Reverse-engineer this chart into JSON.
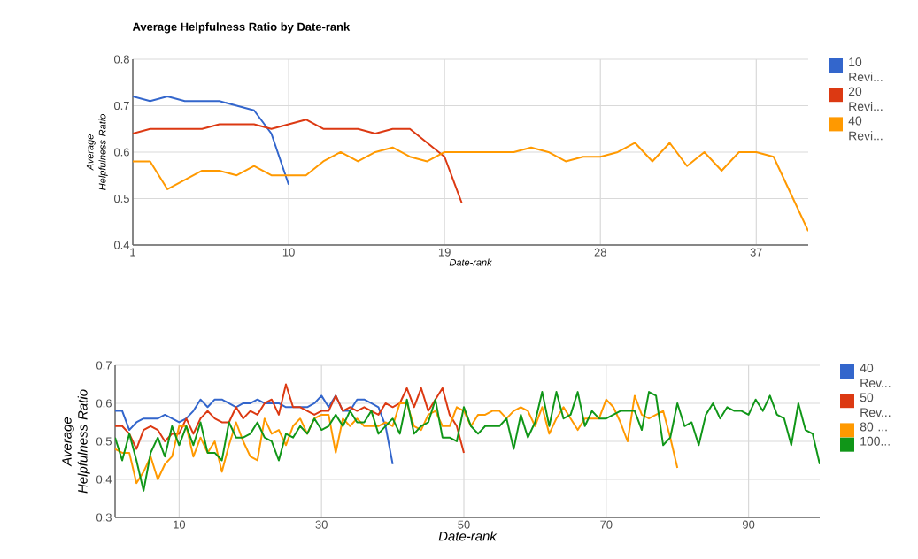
{
  "chart_data": [
    {
      "type": "line",
      "title": "Average Helpfulness Ratio by Date-rank",
      "xlabel": "Date-rank",
      "ylabel": "Average Helpfulness Ratio",
      "xlim": [
        1,
        40
      ],
      "xticks": [
        1,
        10,
        19,
        28,
        37
      ],
      "ylim": [
        0.4,
        0.8
      ],
      "yticks": [
        0.4,
        0.5,
        0.6,
        0.7,
        0.8
      ],
      "grid": true,
      "legend": "right",
      "marker": "none",
      "line_style": "solid",
      "series": [
        {
          "name": "10 Revi...",
          "color": "#3366cc",
          "x": [
            1,
            2,
            3,
            4,
            5,
            6,
            7,
            8,
            9,
            10
          ],
          "values": [
            0.72,
            0.71,
            0.72,
            0.71,
            0.71,
            0.71,
            0.7,
            0.69,
            0.64,
            0.53
          ]
        },
        {
          "name": "20 Revi...",
          "color": "#dc3912",
          "x": [
            1,
            2,
            3,
            4,
            5,
            6,
            7,
            8,
            9,
            10,
            11,
            12,
            13,
            14,
            15,
            16,
            17,
            18,
            19,
            20
          ],
          "values": [
            0.64,
            0.65,
            0.65,
            0.65,
            0.65,
            0.66,
            0.66,
            0.66,
            0.65,
            0.66,
            0.67,
            0.65,
            0.65,
            0.65,
            0.64,
            0.65,
            0.65,
            0.62,
            0.59,
            0.49
          ]
        },
        {
          "name": "40 Revi...",
          "color": "#ff9900",
          "x": [
            1,
            2,
            3,
            4,
            5,
            6,
            7,
            8,
            9,
            10,
            11,
            12,
            13,
            14,
            15,
            16,
            17,
            18,
            19,
            20,
            21,
            22,
            23,
            24,
            25,
            26,
            27,
            28,
            29,
            30,
            31,
            32,
            33,
            34,
            35,
            36,
            37,
            38,
            39,
            40
          ],
          "values": [
            0.58,
            0.58,
            0.52,
            0.54,
            0.56,
            0.56,
            0.55,
            0.57,
            0.55,
            0.55,
            0.55,
            0.58,
            0.6,
            0.58,
            0.6,
            0.61,
            0.59,
            0.58,
            0.6,
            0.6,
            0.6,
            0.6,
            0.6,
            0.61,
            0.6,
            0.58,
            0.59,
            0.59,
            0.6,
            0.62,
            0.58,
            0.62,
            0.57,
            0.6,
            0.56,
            0.6,
            0.6,
            0.59,
            0.51,
            0.43
          ]
        }
      ]
    },
    {
      "type": "line",
      "xlabel": "Date-rank",
      "ylabel": "Average Helpfulness Ratio",
      "xlim": [
        1,
        100
      ],
      "xticks": [
        10,
        30,
        50,
        70,
        90
      ],
      "ylim": [
        0.3,
        0.7
      ],
      "yticks": [
        0.3,
        0.4,
        0.5,
        0.6,
        0.7
      ],
      "grid": true,
      "legend": "right",
      "marker": "none",
      "line_style": "solid",
      "series": [
        {
          "name": "40 Rev...",
          "color": "#3366cc",
          "x": [
            1,
            2,
            3,
            4,
            5,
            6,
            7,
            8,
            9,
            10,
            11,
            12,
            13,
            14,
            15,
            16,
            17,
            18,
            19,
            20,
            21,
            22,
            23,
            24,
            25,
            26,
            27,
            28,
            29,
            30,
            31,
            32,
            33,
            34,
            35,
            36,
            37,
            38,
            39,
            40
          ],
          "values": [
            0.58,
            0.58,
            0.53,
            0.55,
            0.56,
            0.56,
            0.56,
            0.57,
            0.56,
            0.55,
            0.56,
            0.58,
            0.61,
            0.59,
            0.61,
            0.61,
            0.6,
            0.59,
            0.6,
            0.6,
            0.61,
            0.6,
            0.6,
            0.6,
            0.59,
            0.59,
            0.59,
            0.59,
            0.6,
            0.62,
            0.59,
            0.62,
            0.58,
            0.58,
            0.61,
            0.61,
            0.6,
            0.59,
            0.54,
            0.44
          ]
        },
        {
          "name": "50 Rev...",
          "color": "#dc3912",
          "x": [
            1,
            2,
            3,
            4,
            5,
            6,
            7,
            8,
            9,
            10,
            11,
            12,
            13,
            14,
            15,
            16,
            17,
            18,
            19,
            20,
            21,
            22,
            23,
            24,
            25,
            26,
            27,
            28,
            29,
            30,
            31,
            32,
            33,
            34,
            35,
            36,
            37,
            38,
            39,
            40,
            41,
            42,
            43,
            44,
            45,
            46,
            47,
            48,
            49,
            50
          ],
          "values": [
            0.54,
            0.54,
            0.52,
            0.48,
            0.53,
            0.54,
            0.53,
            0.5,
            0.52,
            0.52,
            0.56,
            0.52,
            0.56,
            0.58,
            0.56,
            0.55,
            0.55,
            0.59,
            0.56,
            0.58,
            0.57,
            0.6,
            0.61,
            0.57,
            0.65,
            0.59,
            0.59,
            0.58,
            0.57,
            0.58,
            0.58,
            0.62,
            0.58,
            0.59,
            0.58,
            0.59,
            0.58,
            0.57,
            0.6,
            0.59,
            0.6,
            0.64,
            0.59,
            0.64,
            0.58,
            0.61,
            0.64,
            0.57,
            0.54,
            0.47
          ]
        },
        {
          "name": "80 ...",
          "color": "#ff9900",
          "x": [
            1,
            2,
            3,
            4,
            5,
            6,
            7,
            8,
            9,
            10,
            11,
            12,
            13,
            14,
            15,
            16,
            17,
            18,
            19,
            20,
            21,
            22,
            23,
            24,
            25,
            26,
            27,
            28,
            29,
            30,
            31,
            32,
            33,
            34,
            35,
            36,
            37,
            38,
            39,
            40,
            41,
            42,
            43,
            44,
            45,
            46,
            47,
            48,
            49,
            50,
            51,
            52,
            53,
            54,
            55,
            56,
            57,
            58,
            59,
            60,
            61,
            62,
            63,
            64,
            65,
            66,
            67,
            68,
            69,
            70,
            71,
            72,
            73,
            74,
            75,
            76,
            77,
            78,
            79,
            80
          ],
          "values": [
            0.48,
            0.47,
            0.47,
            0.39,
            0.42,
            0.46,
            0.4,
            0.44,
            0.46,
            0.54,
            0.54,
            0.46,
            0.51,
            0.47,
            0.5,
            0.42,
            0.49,
            0.55,
            0.5,
            0.46,
            0.45,
            0.56,
            0.52,
            0.53,
            0.49,
            0.54,
            0.56,
            0.52,
            0.56,
            0.57,
            0.57,
            0.47,
            0.56,
            0.54,
            0.56,
            0.54,
            0.54,
            0.54,
            0.55,
            0.54,
            0.6,
            0.6,
            0.54,
            0.53,
            0.57,
            0.58,
            0.54,
            0.54,
            0.59,
            0.58,
            0.54,
            0.57,
            0.57,
            0.58,
            0.58,
            0.56,
            0.58,
            0.59,
            0.58,
            0.54,
            0.59,
            0.52,
            0.56,
            0.59,
            0.56,
            0.53,
            0.56,
            0.56,
            0.56,
            0.61,
            0.59,
            0.55,
            0.5,
            0.62,
            0.57,
            0.56,
            0.57,
            0.58,
            0.51,
            0.43
          ]
        },
        {
          "name": "100...",
          "color": "#109618",
          "x": [
            1,
            2,
            3,
            4,
            5,
            6,
            7,
            8,
            9,
            10,
            11,
            12,
            13,
            14,
            15,
            16,
            17,
            18,
            19,
            20,
            21,
            22,
            23,
            24,
            25,
            26,
            27,
            28,
            29,
            30,
            31,
            32,
            33,
            34,
            35,
            36,
            37,
            38,
            39,
            40,
            41,
            42,
            43,
            44,
            45,
            46,
            47,
            48,
            49,
            50,
            51,
            52,
            53,
            54,
            55,
            56,
            57,
            58,
            59,
            60,
            61,
            62,
            63,
            64,
            65,
            66,
            67,
            68,
            69,
            70,
            71,
            72,
            73,
            74,
            75,
            76,
            77,
            78,
            79,
            80,
            81,
            82,
            83,
            84,
            85,
            86,
            87,
            88,
            89,
            90,
            91,
            92,
            93,
            94,
            95,
            96,
            97,
            98,
            99,
            100
          ],
          "values": [
            0.51,
            0.45,
            0.52,
            0.45,
            0.37,
            0.47,
            0.51,
            0.46,
            0.54,
            0.49,
            0.54,
            0.49,
            0.55,
            0.47,
            0.47,
            0.45,
            0.55,
            0.51,
            0.51,
            0.52,
            0.55,
            0.51,
            0.5,
            0.45,
            0.52,
            0.51,
            0.54,
            0.52,
            0.56,
            0.53,
            0.54,
            0.57,
            0.54,
            0.58,
            0.55,
            0.55,
            0.58,
            0.52,
            0.54,
            0.56,
            0.52,
            0.61,
            0.52,
            0.54,
            0.55,
            0.61,
            0.51,
            0.51,
            0.5,
            0.59,
            0.54,
            0.52,
            0.54,
            0.54,
            0.54,
            0.56,
            0.48,
            0.57,
            0.51,
            0.55,
            0.63,
            0.54,
            0.63,
            0.56,
            0.57,
            0.63,
            0.54,
            0.58,
            0.56,
            0.56,
            0.57,
            0.58,
            0.58,
            0.58,
            0.53,
            0.63,
            0.62,
            0.49,
            0.51,
            0.6,
            0.54,
            0.55,
            0.49,
            0.57,
            0.6,
            0.56,
            0.59,
            0.58,
            0.58,
            0.57,
            0.61,
            0.58,
            0.62,
            0.57,
            0.56,
            0.49,
            0.6,
            0.53,
            0.52,
            0.44
          ]
        }
      ]
    }
  ]
}
